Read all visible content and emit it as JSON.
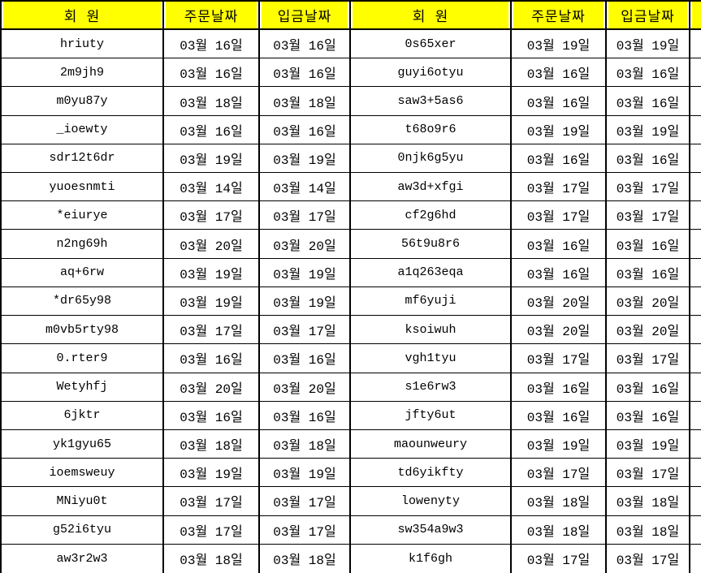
{
  "table": {
    "headers": {
      "member": "회 원",
      "order_date": "주문날짜",
      "deposit_date": "입금날짜"
    },
    "colors": {
      "header_bg": "#FFFF00",
      "border": "#000000",
      "text": "#000000",
      "background": "#FFFFFF"
    },
    "left_rows": [
      {
        "member": "hriuty",
        "order": "03월 16일",
        "deposit": "03월 16일"
      },
      {
        "member": "2m9jh9",
        "order": "03월 16일",
        "deposit": "03월 16일"
      },
      {
        "member": "m0yu87y",
        "order": "03월 18일",
        "deposit": "03월 18일"
      },
      {
        "member": "_ioewty",
        "order": "03월 16일",
        "deposit": "03월 16일"
      },
      {
        "member": "sdr12t6dr",
        "order": "03월 19일",
        "deposit": "03월 19일"
      },
      {
        "member": "yuoesnmti",
        "order": "03월 14일",
        "deposit": "03월 14일"
      },
      {
        "member": "*eiurye",
        "order": "03월 17일",
        "deposit": "03월 17일"
      },
      {
        "member": "n2ng69h",
        "order": "03월 20일",
        "deposit": "03월 20일"
      },
      {
        "member": "aq+6rw",
        "order": "03월 19일",
        "deposit": "03월 19일"
      },
      {
        "member": "*dr65y98",
        "order": "03월 19일",
        "deposit": "03월 19일"
      },
      {
        "member": "m0vb5rty98",
        "order": "03월 17일",
        "deposit": "03월 17일"
      },
      {
        "member": "0.rter9",
        "order": "03월 16일",
        "deposit": "03월 16일"
      },
      {
        "member": "Wetyhfj",
        "order": "03월 20일",
        "deposit": "03월 20일"
      },
      {
        "member": "6jktr",
        "order": "03월 16일",
        "deposit": "03월 16일"
      },
      {
        "member": "yk1gyu65",
        "order": "03월 18일",
        "deposit": "03월 18일"
      },
      {
        "member": "ioemsweuy",
        "order": "03월 19일",
        "deposit": "03월 19일"
      },
      {
        "member": "MNiyu0t",
        "order": "03월 17일",
        "deposit": "03월 17일"
      },
      {
        "member": "g52i6tyu",
        "order": "03월 17일",
        "deposit": "03월 17일"
      },
      {
        "member": "aw3r2w3",
        "order": "03월 18일",
        "deposit": "03월 18일"
      }
    ],
    "right_rows": [
      {
        "member": "0s65xer",
        "order": "03월 19일",
        "deposit": "03월 19일"
      },
      {
        "member": "guyi6otyu",
        "order": "03월 16일",
        "deposit": "03월 16일"
      },
      {
        "member": "saw3+5as6",
        "order": "03월 16일",
        "deposit": "03월 16일"
      },
      {
        "member": "t68o9r6",
        "order": "03월 19일",
        "deposit": "03월 19일"
      },
      {
        "member": "0njk6g5yu",
        "order": "03월 16일",
        "deposit": "03월 16일"
      },
      {
        "member": "aw3d+xfgi",
        "order": "03월 17일",
        "deposit": "03월 17일"
      },
      {
        "member": "cf2g6hd",
        "order": "03월 17일",
        "deposit": "03월 17일"
      },
      {
        "member": "56t9u8r6",
        "order": "03월 16일",
        "deposit": "03월 16일"
      },
      {
        "member": "a1q263eqa",
        "order": "03월 16일",
        "deposit": "03월 16일"
      },
      {
        "member": "mf6yuji",
        "order": "03월 20일",
        "deposit": "03월 20일"
      },
      {
        "member": "ksoiwuh",
        "order": "03월 20일",
        "deposit": "03월 20일"
      },
      {
        "member": "vgh1tyu",
        "order": "03월 17일",
        "deposit": "03월 17일"
      },
      {
        "member": "s1e6rw3",
        "order": "03월 16일",
        "deposit": "03월 16일"
      },
      {
        "member": "jfty6ut",
        "order": "03월 16일",
        "deposit": "03월 16일"
      },
      {
        "member": "maounweury",
        "order": "03월 19일",
        "deposit": "03월 19일"
      },
      {
        "member": "td6yikfty",
        "order": "03월 17일",
        "deposit": "03월 17일"
      },
      {
        "member": "lowenyty",
        "order": "03월 18일",
        "deposit": "03월 18일"
      },
      {
        "member": "sw354a9w3",
        "order": "03월 18일",
        "deposit": "03월 18일"
      },
      {
        "member": "k1f6gh",
        "order": "03월 17일",
        "deposit": "03월 17일"
      }
    ]
  }
}
